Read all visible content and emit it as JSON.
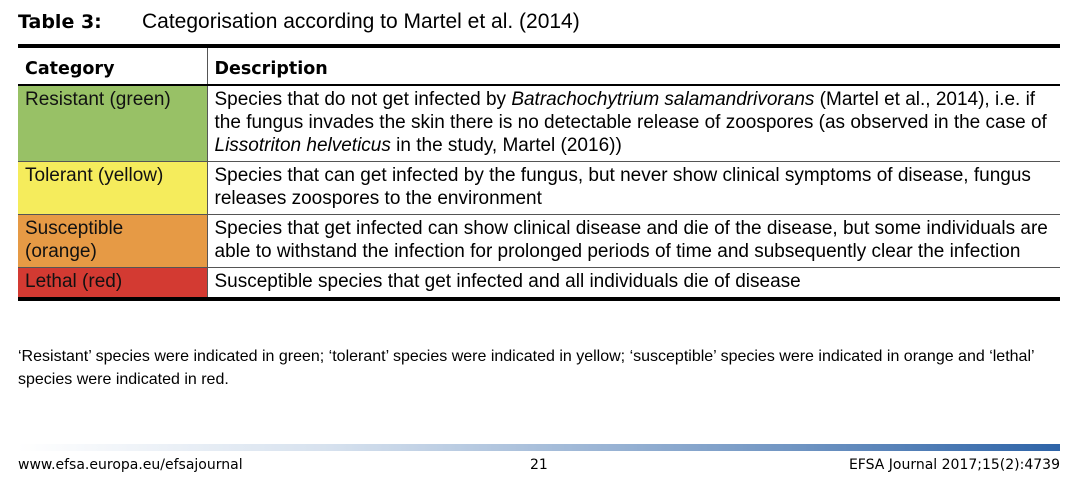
{
  "caption": {
    "label": "Table 3:",
    "title": "Categorisation according to Martel et al. (2014)"
  },
  "table": {
    "headers": [
      "Category",
      "Description"
    ],
    "rows": [
      {
        "category": "Resistant (green)",
        "color": "#98c166",
        "description": [
          {
            "t": "Species that do not get infected by "
          },
          {
            "t": "Batrachochytrium salamandrivorans",
            "i": true
          },
          {
            "t": " (Martel et al., 2014), i.e. if the fungus invades the skin there is no detectable release of zoospores (as observed in the case of "
          },
          {
            "t": "Lissotriton helveticus",
            "i": true
          },
          {
            "t": " in the study, Martel (2016))"
          }
        ]
      },
      {
        "category": "Tolerant (yellow)",
        "color": "#f5ec5c",
        "description": [
          {
            "t": "Species that can get infected by the fungus, but never show clinical symptoms of disease, fungus releases zoospores to the environment"
          }
        ]
      },
      {
        "category": "Susceptible (orange)",
        "color": "#e69a45",
        "description": [
          {
            "t": "Species that get infected can show clinical disease and die of the disease, but some individuals are able to withstand the infection for prolonged periods of time and subsequently clear the infection"
          }
        ]
      },
      {
        "category": "Lethal (red)",
        "color": "#d33a32",
        "description": [
          {
            "t": "Susceptible species that get infected and all individuals die of disease"
          }
        ]
      }
    ]
  },
  "note": "‘Resistant’ species were indicated in green; ‘tolerant’ species were indicated in yellow; ‘susceptible’ species were indicated in orange and ‘lethal’ species were indicated in red.",
  "footer": {
    "left": "www.efsa.europa.eu/efsajournal",
    "center": "21",
    "right": "EFSA Journal 2017;15(2):4739"
  }
}
